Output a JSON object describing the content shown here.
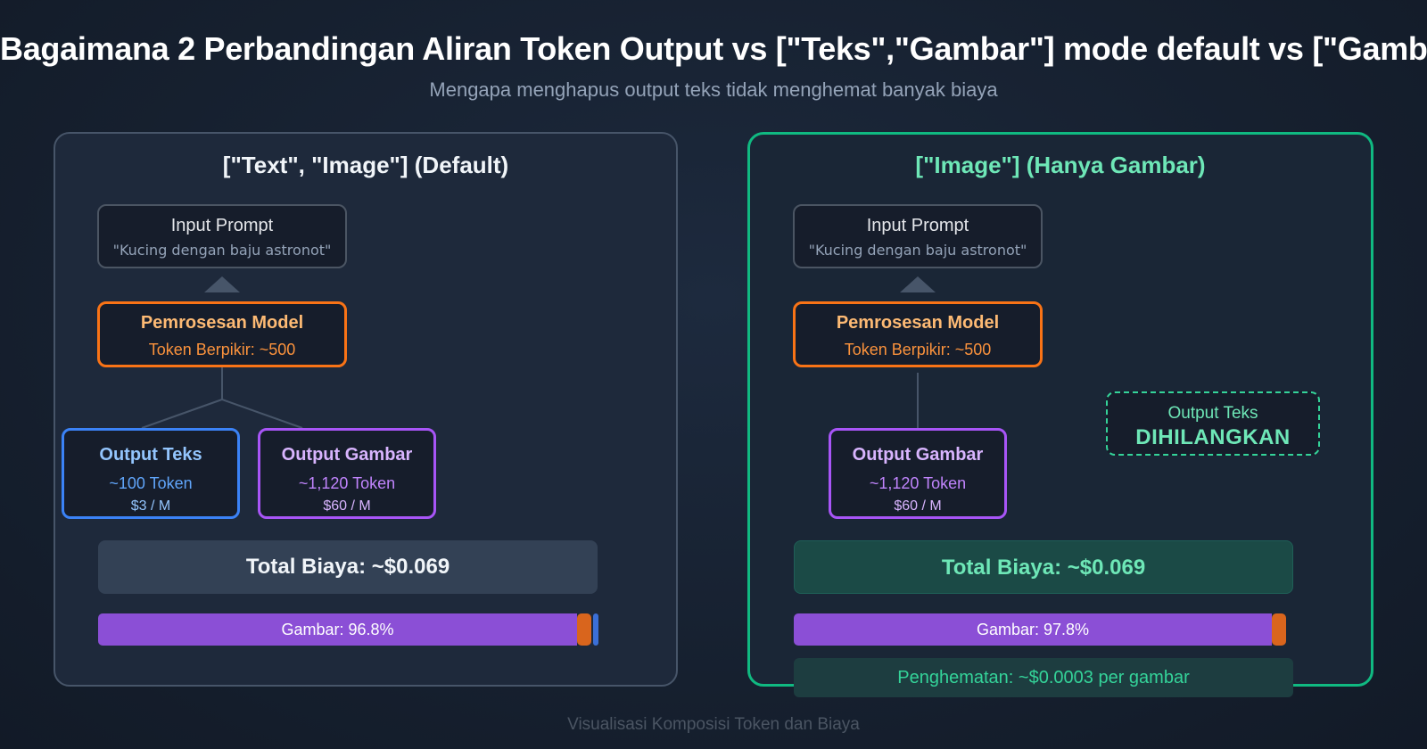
{
  "title": "Bagaimana 2 Perbandingan Aliran Token Output vs [\"Teks\",\"Gambar\"] mode default vs [\"Gambar\"]",
  "subtitle": "Mengapa menghapus output teks tidak menghemat banyak biaya",
  "left": {
    "title": "[\"Text\", \"Image\"] (Default)",
    "prompt": {
      "label": "Input Prompt",
      "text": "\"Kucing dengan baju astronot\""
    },
    "model": {
      "label": "Pemrosesan Model",
      "tokens": "Token Berpikir: ~500"
    },
    "output_text": {
      "label": "Output Teks",
      "tokens": "~100 Token",
      "price": "$3 / M"
    },
    "output_image": {
      "label": "Output Gambar",
      "tokens": "~1,120 Token",
      "price": "$60 / M"
    },
    "total": "Total Biaya: ~$0.069",
    "bar": {
      "label": "Gambar: 96.8%",
      "image_pct": 96.8
    }
  },
  "right": {
    "title": "[\"Image\"] (Hanya Gambar)",
    "prompt": {
      "label": "Input Prompt",
      "text": "\"Kucing dengan baju astronot\""
    },
    "model": {
      "label": "Pemrosesan Model",
      "tokens": "Token Berpikir: ~500"
    },
    "output_image": {
      "label": "Output Gambar",
      "tokens": "~1,120 Token",
      "price": "$60 / M"
    },
    "removed": {
      "label": "Output Teks",
      "status": "DIHILANGKAN"
    },
    "total": "Total Biaya: ~$0.069",
    "bar": {
      "label": "Gambar: 97.8%",
      "image_pct": 97.8
    },
    "savings": "Penghematan: ~$0.0003 per gambar"
  },
  "footer": "Visualisasi Komposisi Token dan Biaya",
  "colors": {
    "image": "#8b4fd6",
    "thinking": "#d9651d",
    "text": "#3b6fd6",
    "accent": "#10b981"
  }
}
